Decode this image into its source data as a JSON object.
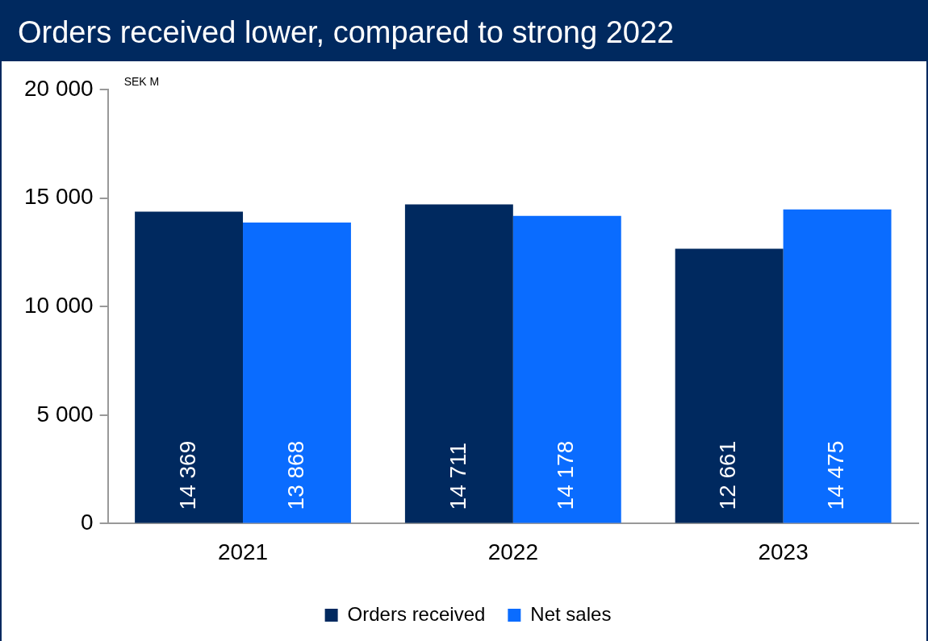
{
  "chart_data": {
    "type": "bar",
    "title": "Orders received lower, compared to strong 2022",
    "categories": [
      "2021",
      "2022",
      "2023"
    ],
    "series": [
      {
        "name": "Orders received",
        "color": "#00295f",
        "values": [
          14369,
          14711,
          12661
        ],
        "value_labels": [
          "14 369",
          "14 711",
          "12 661"
        ]
      },
      {
        "name": "Net sales",
        "color": "#0a6cff",
        "values": [
          13868,
          14178,
          14475
        ],
        "value_labels": [
          "13 868",
          "14 178",
          "14 475"
        ]
      }
    ],
    "ylim": [
      0,
      20000
    ],
    "yticks": [
      {
        "value": 0,
        "label": "0"
      },
      {
        "value": 5000,
        "label": "5 000"
      },
      {
        "value": 10000,
        "label": "10 000"
      },
      {
        "value": 15000,
        "label": "15 000"
      },
      {
        "value": 20000,
        "label": "20 000"
      }
    ],
    "annotations": [
      "SEK M"
    ],
    "grid": false,
    "legend": "bottom"
  }
}
